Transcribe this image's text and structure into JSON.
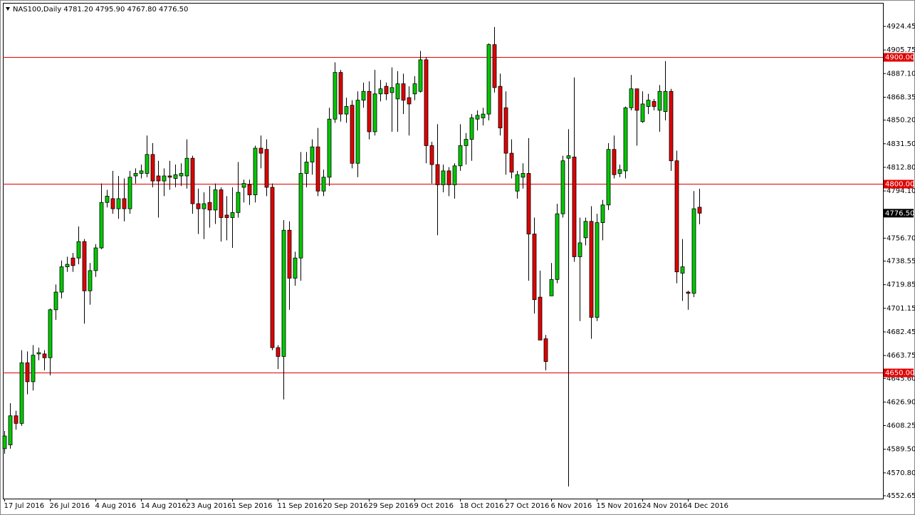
{
  "chart_data": {
    "type": "candlestick",
    "title": "NAS100,Daily  4781.20 4795.90 4767.80 4776.50",
    "categories": [
      "17 Jul 2016",
      null,
      null,
      null,
      null,
      null,
      null,
      null,
      "26 Jul 2016",
      null,
      null,
      null,
      null,
      null,
      null,
      null,
      "4 Aug 2016",
      null,
      null,
      null,
      null,
      null,
      null,
      null,
      "14 Aug 2016",
      null,
      null,
      null,
      null,
      null,
      null,
      null,
      "23 Aug 2016",
      null,
      null,
      null,
      null,
      null,
      null,
      null,
      "1 Sep 2016",
      null,
      null,
      null,
      null,
      null,
      null,
      null,
      "11 Sep 2016",
      null,
      null,
      null,
      null,
      null,
      null,
      null,
      "20 Sep 2016",
      null,
      null,
      null,
      null,
      null,
      null,
      null,
      "29 Sep 2016",
      null,
      null,
      null,
      null,
      null,
      null,
      null,
      "9 Oct 2016",
      null,
      null,
      null,
      null,
      null,
      null,
      null,
      "18 Oct 2016",
      null,
      null,
      null,
      null,
      null,
      null,
      null,
      "27 Oct 2016",
      null,
      null,
      null,
      null,
      null,
      null,
      null,
      "6 Nov 2016",
      null,
      null,
      null,
      null,
      null,
      null,
      null,
      "15 Nov 2016",
      null,
      null,
      null,
      null,
      null,
      null,
      null,
      "24 Nov 2016",
      null,
      null,
      null,
      null,
      null,
      null,
      null,
      "4 Dec 2016",
      null,
      null
    ],
    "open": [
      4590,
      4593,
      4616,
      4610,
      4658,
      4643,
      4665,
      4665,
      4662,
      4700,
      4714,
      4734,
      4741,
      4741,
      4754,
      4715,
      4731,
      4749,
      4785,
      4788,
      4780,
      4788,
      4780,
      4806,
      4808,
      4808,
      4823,
      4806,
      4802,
      4806,
      4804,
      4806,
      4806,
      4820,
      4784,
      4780,
      4785,
      4779,
      4795,
      4775,
      4773,
      4777,
      4797,
      4799,
      4791,
      4828,
      4827,
      4797,
      4670,
      4663,
      4763,
      4725,
      4741,
      4808,
      4817,
      4829,
      4794,
      4805,
      4851,
      4888,
      4855,
      4862,
      4816,
      4866,
      4873,
      4841,
      4871,
      4877,
      4872,
      4867,
      4879,
      4868,
      4871,
      4873,
      4898,
      4830,
      4815,
      4799,
      4810,
      4799,
      4814,
      4830,
      4835,
      4851,
      4852,
      4855,
      4910,
      4877,
      4860,
      4824,
      4794,
      4805,
      4808,
      4760,
      4710,
      4677,
      4711,
      4724,
      4776,
      4820,
      4821,
      4742,
      4757,
      4770,
      4694,
      4769,
      4783,
      4827,
      4808,
      4810,
      4860,
      4875,
      4849,
      4861,
      4865,
      4858,
      4857,
      4873,
      4818,
      4729,
      4714,
      4713,
      4781.2
    ],
    "high": [
      4604,
      4626,
      4620,
      4668,
      4667,
      4672,
      4670,
      4668,
      4701,
      4720,
      4739,
      4742,
      4745,
      4766,
      4756,
      4737,
      4752,
      4800,
      4795,
      4810,
      4806,
      4804,
      4810,
      4812,
      4815,
      4838,
      4832,
      4818,
      4812,
      4818,
      4815,
      4816,
      4835,
      4822,
      4796,
      4793,
      4798,
      4800,
      4797,
      4790,
      4797,
      4817,
      4803,
      4803,
      4830,
      4838,
      4835,
      4800,
      4672,
      4771,
      4770,
      4746,
      4825,
      4825,
      4835,
      4844,
      4811,
      4860,
      4896,
      4890,
      4868,
      4866,
      4873,
      4880,
      4881,
      4890,
      4882,
      4880,
      4892,
      4889,
      4887,
      4877,
      4885,
      4905,
      4900,
      4833,
      4847,
      4815,
      4813,
      4816,
      4847,
      4840,
      4855,
      4858,
      4860,
      4911,
      4924,
      4887,
      4873,
      4835,
      4810,
      4816,
      4836,
      4773,
      4731,
      4680,
      4737,
      4784,
      4822,
      4843,
      4884,
      4773,
      4773,
      4782,
      4776,
      4787,
      4832,
      4838,
      4815,
      4861,
      4886,
      4875,
      4873,
      4871,
      4867,
      4878,
      4897,
      4875,
      4826,
      4756,
      4715,
      4794,
      4795.9
    ],
    "low": [
      4586,
      4590,
      4605,
      4608,
      4633,
      4636,
      4660,
      4652,
      4648,
      4692,
      4709,
      4730,
      4730,
      4736,
      4689,
      4704,
      4726,
      4748,
      4781,
      4776,
      4772,
      4770,
      4776,
      4800,
      4804,
      4805,
      4797,
      4773,
      4790,
      4795,
      4797,
      4798,
      4796,
      4776,
      4760,
      4756,
      4765,
      4768,
      4754,
      4755,
      4749,
      4773,
      4785,
      4783,
      4785,
      4812,
      4790,
      4668,
      4653,
      4629,
      4700,
      4719,
      4723,
      4797,
      4807,
      4790,
      4790,
      4798,
      4848,
      4849,
      4848,
      4812,
      4805,
      4860,
      4835,
      4838,
      4865,
      4866,
      4841,
      4841,
      4855,
      4838,
      4866,
      4872,
      4816,
      4800,
      4759,
      4793,
      4790,
      4788,
      4810,
      4815,
      4818,
      4842,
      4846,
      4850,
      4872,
      4838,
      4807,
      4804,
      4788,
      4796,
      4723,
      4697,
      4676,
      4652,
      4711,
      4721,
      4773,
      4560,
      4738,
      4691,
      4751,
      4677,
      4691,
      4755,
      4779,
      4804,
      4805,
      4804,
      4858,
      4830,
      4848,
      4855,
      4858,
      4841,
      4850,
      4810,
      4721,
      4707,
      4700,
      4710,
      4767.8
    ],
    "close": [
      4600,
      4616,
      4610,
      4658,
      4643,
      4664,
      4666,
      4662,
      4700,
      4714,
      4734,
      4736,
      4735,
      4754,
      4715,
      4731,
      4749,
      4785,
      4790,
      4780,
      4788,
      4780,
      4805,
      4808,
      4810,
      4823,
      4802,
      4802,
      4806,
      4805,
      4807,
      4808,
      4820,
      4784,
      4780,
      4784,
      4779,
      4795,
      4773,
      4773,
      4777,
      4793,
      4800,
      4791,
      4828,
      4824,
      4797,
      4670,
      4663,
      4763,
      4725,
      4741,
      4808,
      4817,
      4829,
      4794,
      4805,
      4851,
      4888,
      4855,
      4861,
      4816,
      4866,
      4873,
      4841,
      4871,
      4875,
      4871,
      4876,
      4879,
      4866,
      4863,
      4879,
      4898,
      4830,
      4815,
      4799,
      4810,
      4799,
      4814,
      4830,
      4835,
      4852,
      4854,
      4855,
      4910,
      4876,
      4844,
      4824,
      4809,
      4807,
      4808,
      4760,
      4708,
      4676,
      4659,
      4724,
      4776,
      4818,
      4822,
      4742,
      4753,
      4770,
      4694,
      4769,
      4783,
      4827,
      4807,
      4811,
      4860,
      4875,
      4858,
      4863,
      4866,
      4861,
      4873,
      4873,
      4818,
      4730,
      4734,
      4713,
      4780,
      4776.5
    ],
    "up_color": "#00c800",
    "down_color": "#e00000",
    "ylim": [
      4550.4,
      4943.1
    ],
    "yticks": [
      4924.45,
      4905.75,
      {
        "value": 4887.1,
        "label": "4887.10"
      },
      4868.35,
      {
        "value": 4850.2,
        "label": "4850.20"
      },
      {
        "value": 4831.5,
        "label": "4831.50"
      },
      {
        "value": 4812.8,
        "label": "4812.80"
      },
      {
        "value": 4794.1,
        "label": "4794.10"
      },
      {
        "value": 4756.7,
        "label": "4756.70"
      },
      4738.55,
      4719.85,
      4701.15,
      4682.45,
      4663.75,
      {
        "value": 4645.6,
        "label": "4645.60"
      },
      {
        "value": 4626.9,
        "label": "4626.90"
      },
      4608.25,
      {
        "value": 4589.5,
        "label": "4589.50"
      },
      {
        "value": 4570.8,
        "label": "4570.80"
      },
      4552.65
    ],
    "levels": [
      {
        "value": 4900,
        "label": "4900.00"
      },
      {
        "value": 4800,
        "label": "4800.00"
      },
      {
        "value": 4650,
        "label": "4650.00"
      }
    ],
    "level_color": "#e00000",
    "current_price": {
      "value": 4776.5,
      "label": "4776.50"
    }
  }
}
